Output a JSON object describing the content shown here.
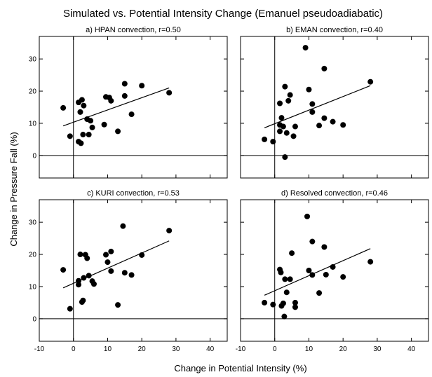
{
  "title": "Simulated vs. Potential Intensity Change (Emanuel pseudoadiabatic)",
  "xlabel": "Change in Potential Intensity (%)",
  "ylabel": "Change in Pressure Fall (%)",
  "chart_data": [
    {
      "type": "scatter",
      "title": "a) HPAN convection, r=0.50",
      "xlim": [
        -10,
        45
      ],
      "ylim": [
        -7,
        37
      ],
      "xticks": [
        -10,
        0,
        10,
        20,
        30,
        40
      ],
      "yticks": [
        0,
        10,
        20,
        30
      ],
      "points": [
        [
          -3,
          14.8
        ],
        [
          -1,
          6
        ],
        [
          1.5,
          16.5
        ],
        [
          2,
          13.5
        ],
        [
          2.5,
          17.3
        ],
        [
          3,
          15.5
        ],
        [
          4,
          11.3
        ],
        [
          5,
          10.8
        ],
        [
          1.5,
          4.3
        ],
        [
          2.2,
          3.8
        ],
        [
          2.8,
          6.5
        ],
        [
          4.5,
          6.5
        ],
        [
          5.5,
          8.7
        ],
        [
          9,
          9.6
        ],
        [
          9.5,
          18.2
        ],
        [
          10.5,
          18
        ],
        [
          11,
          17
        ],
        [
          13,
          7.5
        ],
        [
          15,
          22.3
        ],
        [
          15,
          18.5
        ],
        [
          17,
          12.8
        ],
        [
          20,
          21.7
        ],
        [
          28,
          19.5
        ]
      ],
      "fit": [
        [
          -3,
          9.2
        ],
        [
          28,
          21
        ]
      ]
    },
    {
      "type": "scatter",
      "title": "b) EMAN convection, r=0.40",
      "xlim": [
        -10,
        45
      ],
      "ylim": [
        -7,
        37
      ],
      "xticks": [
        -10,
        0,
        10,
        20,
        30,
        40
      ],
      "yticks": [
        0,
        10,
        20,
        30
      ],
      "points": [
        [
          -3,
          5
        ],
        [
          -0.5,
          4.3
        ],
        [
          1.5,
          7.5
        ],
        [
          1.5,
          9.5
        ],
        [
          1.5,
          16.2
        ],
        [
          2,
          11.7
        ],
        [
          2.5,
          9
        ],
        [
          3,
          21.4
        ],
        [
          3,
          -0.5
        ],
        [
          3.5,
          7
        ],
        [
          4,
          17
        ],
        [
          4.5,
          18.8
        ],
        [
          5.5,
          6
        ],
        [
          6,
          9
        ],
        [
          9,
          33.5
        ],
        [
          10,
          20.5
        ],
        [
          11,
          16
        ],
        [
          11,
          13.5
        ],
        [
          13,
          9.3
        ],
        [
          14.5,
          27
        ],
        [
          14.5,
          11.6
        ],
        [
          17,
          10.5
        ],
        [
          20,
          9.5
        ],
        [
          28,
          22.9
        ]
      ],
      "fit": [
        [
          -3,
          8.6
        ],
        [
          28,
          21.7
        ]
      ]
    },
    {
      "type": "scatter",
      "title": "c) KURI convection, r=0.53",
      "xlim": [
        -10,
        45
      ],
      "ylim": [
        -7,
        37
      ],
      "xticks": [
        -10,
        0,
        10,
        20,
        30,
        40
      ],
      "yticks": [
        0,
        10,
        20,
        30
      ],
      "points": [
        [
          -3,
          15.2
        ],
        [
          -1,
          3.1
        ],
        [
          1.5,
          10.6
        ],
        [
          1.5,
          11.8
        ],
        [
          2,
          20
        ],
        [
          2.5,
          5.2
        ],
        [
          2.8,
          5.7
        ],
        [
          3,
          12.7
        ],
        [
          3.5,
          19.9
        ],
        [
          4,
          18.8
        ],
        [
          4.5,
          13.4
        ],
        [
          5.5,
          11.7
        ],
        [
          6,
          10.8
        ],
        [
          9.5,
          19.9
        ],
        [
          10,
          17.6
        ],
        [
          11,
          20.9
        ],
        [
          11,
          14.8
        ],
        [
          13,
          4.3
        ],
        [
          14.5,
          28.8
        ],
        [
          15,
          14.3
        ],
        [
          17,
          13.6
        ],
        [
          20,
          19.8
        ],
        [
          28,
          27.4
        ]
      ],
      "fit": [
        [
          -3,
          9.6
        ],
        [
          28,
          24.2
        ]
      ]
    },
    {
      "type": "scatter",
      "title": "d) Resolved convection, r=0.46",
      "xlim": [
        -10,
        45
      ],
      "ylim": [
        -7,
        37
      ],
      "xticks": [
        -10,
        0,
        10,
        20,
        30,
        40
      ],
      "yticks": [
        0,
        10,
        20,
        30
      ],
      "points": [
        [
          -3,
          5
        ],
        [
          -0.5,
          4.4
        ],
        [
          1.5,
          15.3
        ],
        [
          1.8,
          14.4
        ],
        [
          2,
          4
        ],
        [
          2.5,
          4.8
        ],
        [
          2.8,
          0.7
        ],
        [
          3,
          12.3
        ],
        [
          3.5,
          8.2
        ],
        [
          4.5,
          12.3
        ],
        [
          5,
          20.4
        ],
        [
          6,
          3.6
        ],
        [
          6,
          5
        ],
        [
          9.5,
          31.8
        ],
        [
          10,
          15
        ],
        [
          11,
          24
        ],
        [
          11,
          13.6
        ],
        [
          13,
          8
        ],
        [
          14.5,
          22.3
        ],
        [
          15,
          13.7
        ],
        [
          17,
          16.1
        ],
        [
          20,
          13
        ],
        [
          28,
          17.7
        ]
      ],
      "fit": [
        [
          -3,
          7.3
        ],
        [
          28,
          21.8
        ]
      ]
    }
  ]
}
